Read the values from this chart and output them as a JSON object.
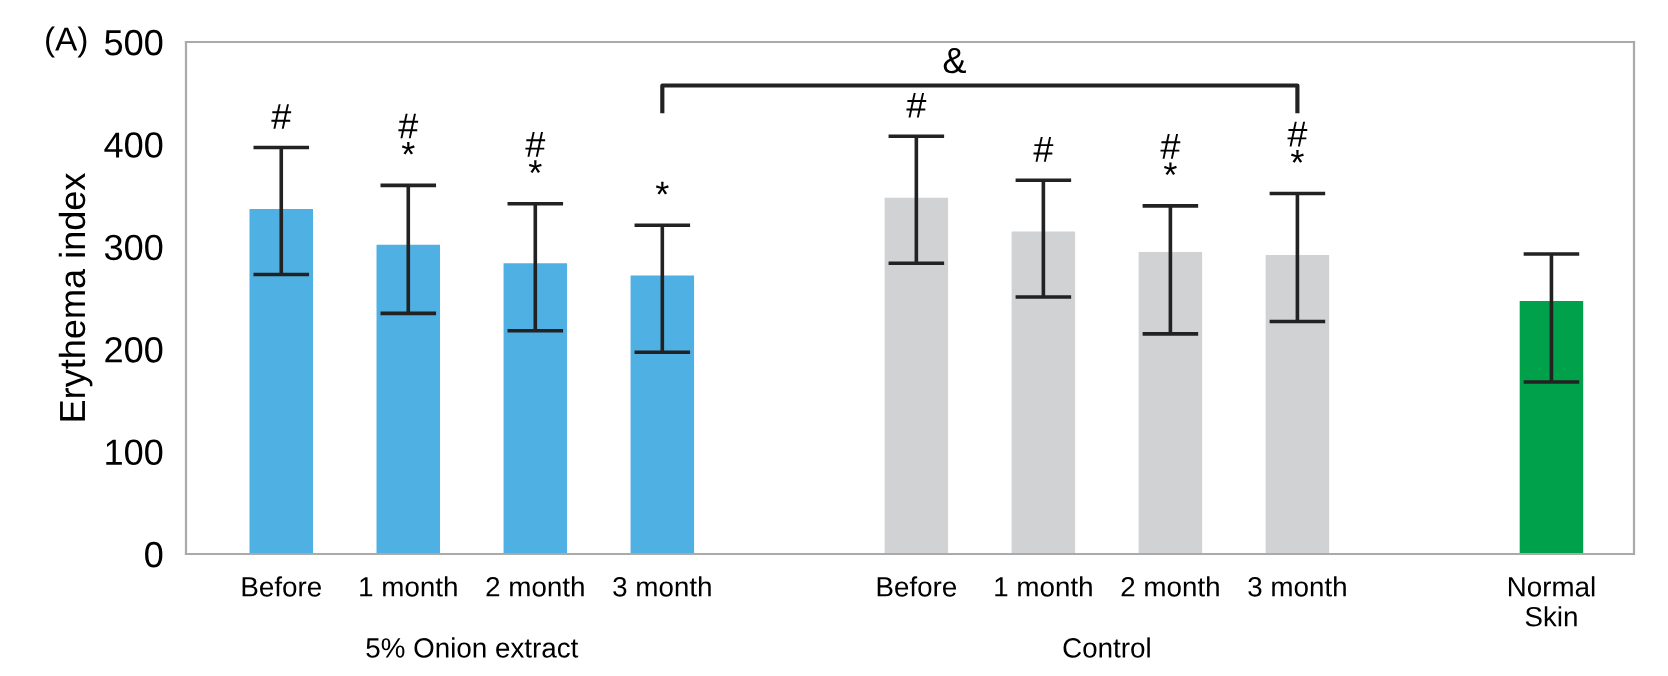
{
  "chart_data": {
    "type": "bar",
    "ylabel": "Erythema index",
    "categories": [
      "Before",
      "1 month",
      "2 month",
      "3 month",
      null,
      "Before",
      "1 month",
      "2 month",
      "3 month",
      null,
      "Normal\nSkin"
    ],
    "values": [
      337,
      302,
      284,
      272,
      null,
      348,
      315,
      295,
      292,
      null,
      247
    ],
    "errors": [
      [
        273,
        397
      ],
      [
        235,
        360
      ],
      [
        218,
        342
      ],
      [
        197,
        321
      ],
      null,
      [
        284,
        408
      ],
      [
        251,
        365
      ],
      [
        215,
        340
      ],
      [
        227,
        352
      ],
      null,
      [
        168,
        293
      ]
    ],
    "colors": [
      "#4fb0e3",
      "#4fb0e3",
      "#4fb0e3",
      "#4fb0e3",
      null,
      "#d1d2d4",
      "#d1d2d4",
      "#d1d2d4",
      "#d1d2d4",
      null,
      "#00a14b"
    ],
    "value_labels": [
      "#",
      "#\n*",
      "#\n*",
      "*",
      null,
      "#",
      "#",
      "#\n*",
      "#\n*",
      null,
      null
    ],
    "ylim": [
      0,
      500
    ],
    "yticks": [
      0,
      100,
      200,
      300,
      400,
      500
    ],
    "grid": false,
    "legend": false,
    "annotations": [
      "(A)",
      "&",
      "5% Onion extract",
      "Control"
    ]
  }
}
